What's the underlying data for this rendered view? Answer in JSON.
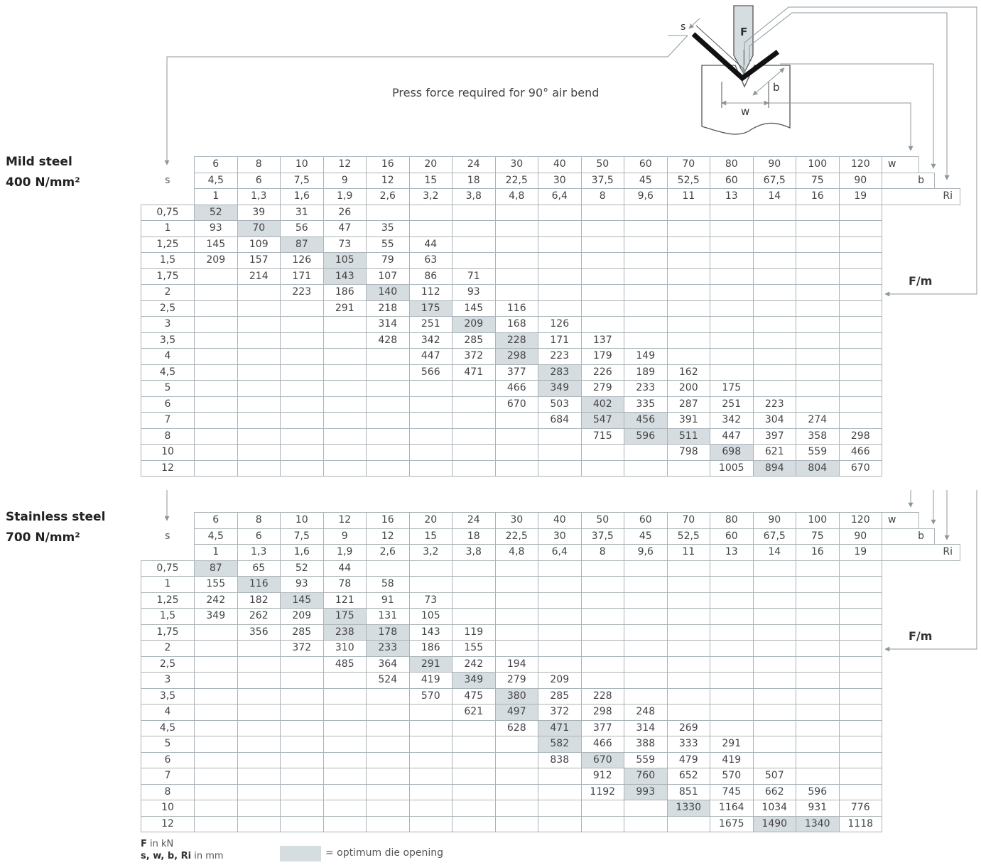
{
  "title": "Press force required for 90° air bend",
  "diagram": {
    "s_label": "s",
    "f_label": "F",
    "b_label": "b",
    "w_label": "w"
  },
  "header_rows": {
    "w": [
      "6",
      "8",
      "10",
      "12",
      "16",
      "20",
      "24",
      "30",
      "40",
      "50",
      "60",
      "70",
      "80",
      "90",
      "100",
      "120"
    ],
    "b": [
      "4,5",
      "6",
      "7,5",
      "9",
      "12",
      "15",
      "18",
      "22,5",
      "30",
      "37,5",
      "45",
      "52,5",
      "60",
      "67,5",
      "75",
      "90"
    ],
    "ri": [
      "1",
      "1,3",
      "1,6",
      "1,9",
      "2,6",
      "3,2",
      "3,8",
      "4,8",
      "6,4",
      "8",
      "9,6",
      "11",
      "13",
      "14",
      "16",
      "19"
    ],
    "w_label": "w",
    "b_label": "b",
    "ri_label": "Ri",
    "s_label": "s"
  },
  "thicknesses": [
    "0,75",
    "1",
    "1,25",
    "1,5",
    "1,75",
    "2",
    "2,5",
    "3",
    "3,5",
    "4",
    "4,5",
    "5",
    "6",
    "7",
    "8",
    "10",
    "12"
  ],
  "tables": [
    {
      "material": "Mild steel",
      "strength": "400 N/mm²",
      "fm_label": "F/m",
      "rows": [
        {
          "start": 0,
          "opt": 0,
          "values": [
            "52",
            "39",
            "31",
            "26"
          ]
        },
        {
          "start": 0,
          "opt": 1,
          "values": [
            "93",
            "70",
            "56",
            "47",
            "35"
          ]
        },
        {
          "start": 0,
          "opt": 2,
          "values": [
            "145",
            "109",
            "87",
            "73",
            "55",
            "44"
          ]
        },
        {
          "start": 0,
          "opt": 3,
          "values": [
            "209",
            "157",
            "126",
            "105",
            "79",
            "63"
          ]
        },
        {
          "start": 1,
          "opt": 3,
          "values": [
            "214",
            "171",
            "143",
            "107",
            "86",
            "71"
          ]
        },
        {
          "start": 2,
          "opt": 4,
          "values": [
            "223",
            "186",
            "140",
            "112",
            "93"
          ]
        },
        {
          "start": 3,
          "opt": 5,
          "values": [
            "291",
            "218",
            "175",
            "145",
            "116"
          ]
        },
        {
          "start": 4,
          "opt": 6,
          "values": [
            "314",
            "251",
            "209",
            "168",
            "126"
          ]
        },
        {
          "start": 4,
          "opt": 7,
          "values": [
            "428",
            "342",
            "285",
            "228",
            "171",
            "137"
          ]
        },
        {
          "start": 5,
          "opt": 7,
          "values": [
            "447",
            "372",
            "298",
            "223",
            "179",
            "149"
          ]
        },
        {
          "start": 5,
          "opt": 8,
          "values": [
            "566",
            "471",
            "377",
            "283",
            "226",
            "189",
            "162"
          ]
        },
        {
          "start": 7,
          "opt": 8,
          "values": [
            "466",
            "349",
            "279",
            "233",
            "200",
            "175"
          ]
        },
        {
          "start": 7,
          "opt": 9,
          "values": [
            "670",
            "503",
            "402",
            "335",
            "287",
            "251",
            "223"
          ]
        },
        {
          "start": 8,
          "opt": 9,
          "values": [
            "684",
            "547",
            "456",
            "391",
            "342",
            "304",
            "274"
          ]
        },
        {
          "start": 9,
          "opt": 11,
          "values": [
            "715",
            "596",
            "511",
            "447",
            "397",
            "358",
            "298"
          ]
        },
        {
          "start": 11,
          "opt": 12,
          "values": [
            "798",
            "698",
            "621",
            "559",
            "466"
          ]
        },
        {
          "start": 12,
          "opt": 13,
          "values": [
            "1005",
            "894",
            "804",
            "670"
          ]
        }
      ],
      "opt2": [
        null,
        null,
        null,
        null,
        null,
        null,
        null,
        null,
        null,
        null,
        null,
        null,
        null,
        10,
        10,
        null,
        14
      ]
    },
    {
      "material": "Stainless steel",
      "strength": "700 N/mm²",
      "fm_label": "F/m",
      "rows": [
        {
          "start": 0,
          "opt": 0,
          "values": [
            "87",
            "65",
            "52",
            "44"
          ]
        },
        {
          "start": 0,
          "opt": 1,
          "values": [
            "155",
            "116",
            "93",
            "78",
            "58"
          ]
        },
        {
          "start": 0,
          "opt": 2,
          "values": [
            "242",
            "182",
            "145",
            "121",
            "91",
            "73"
          ]
        },
        {
          "start": 0,
          "opt": 3,
          "values": [
            "349",
            "262",
            "209",
            "175",
            "131",
            "105"
          ]
        },
        {
          "start": 1,
          "opt": 3,
          "values": [
            "356",
            "285",
            "238",
            "178",
            "143",
            "119"
          ]
        },
        {
          "start": 2,
          "opt": 4,
          "values": [
            "372",
            "310",
            "233",
            "186",
            "155"
          ]
        },
        {
          "start": 3,
          "opt": 5,
          "values": [
            "485",
            "364",
            "291",
            "242",
            "194"
          ]
        },
        {
          "start": 4,
          "opt": 6,
          "values": [
            "524",
            "419",
            "349",
            "279",
            "209"
          ]
        },
        {
          "start": 5,
          "opt": 7,
          "values": [
            "570",
            "475",
            "380",
            "285",
            "228"
          ]
        },
        {
          "start": 6,
          "opt": 7,
          "values": [
            "621",
            "497",
            "372",
            "298",
            "248"
          ]
        },
        {
          "start": 7,
          "opt": 8,
          "values": [
            "628",
            "471",
            "377",
            "314",
            "269"
          ]
        },
        {
          "start": 8,
          "opt": 8,
          "values": [
            "582",
            "466",
            "388",
            "333",
            "291"
          ]
        },
        {
          "start": 8,
          "opt": 9,
          "values": [
            "838",
            "670",
            "559",
            "479",
            "419"
          ]
        },
        {
          "start": 9,
          "opt": 10,
          "values": [
            "912",
            "760",
            "652",
            "570",
            "507"
          ]
        },
        {
          "start": 9,
          "opt": 10,
          "values": [
            "1192",
            "993",
            "851",
            "745",
            "662",
            "596"
          ]
        },
        {
          "start": 11,
          "opt": 11,
          "values": [
            "1330",
            "1164",
            "1034",
            "931",
            "776"
          ]
        },
        {
          "start": 12,
          "opt": 13,
          "values": [
            "1675",
            "1490",
            "1340",
            "1118"
          ]
        }
      ],
      "opt2": [
        null,
        null,
        null,
        null,
        4,
        null,
        null,
        null,
        null,
        null,
        null,
        null,
        null,
        null,
        null,
        null,
        14
      ]
    }
  ],
  "legend": {
    "f_key": "F",
    "f_unit": " in kN",
    "dims_key": "s, w, b, Ri",
    "dims_unit": " in mm",
    "optimum_text": "= optimum die opening"
  },
  "colors": {
    "optimum_fill": "#d6dde1",
    "grid": "#a9b3b8",
    "arrow": "#8c979c"
  }
}
